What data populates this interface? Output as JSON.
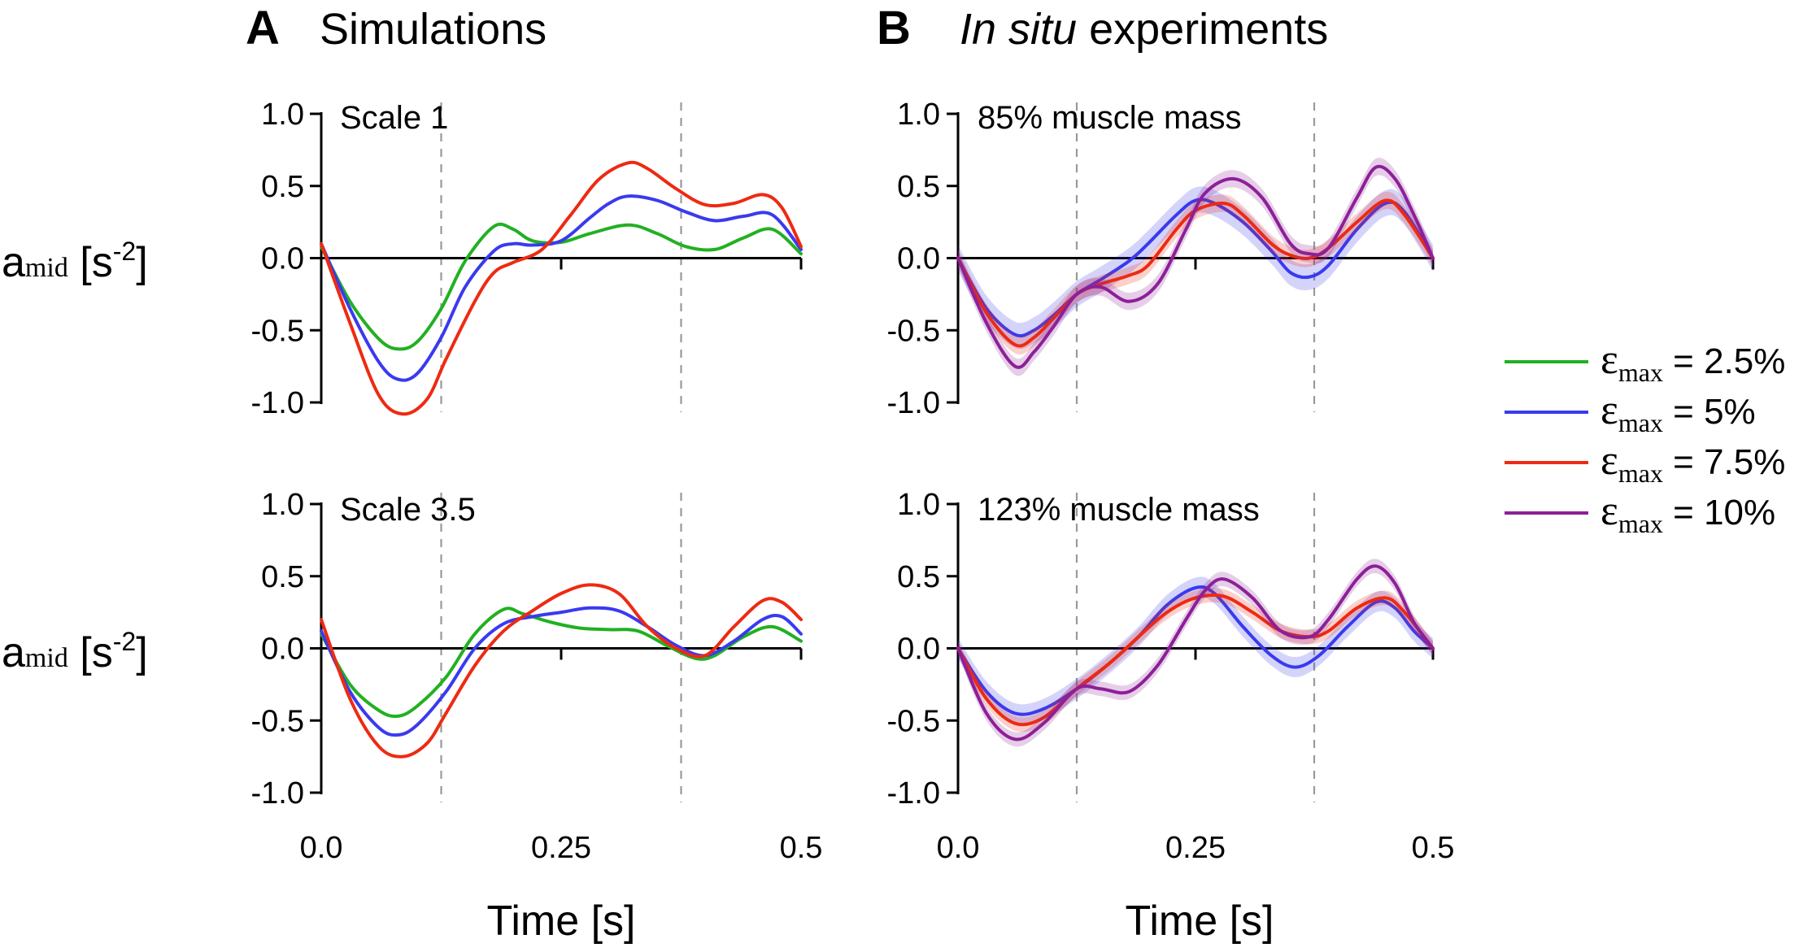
{
  "figure": {
    "panel_a": {
      "letter": "A",
      "title": "Simulations"
    },
    "panel_b": {
      "letter": "B",
      "title_italic": "In situ",
      "title_rest": " experiments"
    },
    "ylabel": {
      "main": "a",
      "sub": "mid",
      "unit_open": " [s",
      "sup": "-2",
      "unit_close": "]"
    },
    "xlabel": "Time [s]",
    "colors": {
      "green": "#22b022",
      "blue": "#3a3aef",
      "red": "#ee2a12",
      "purple": "#8c2098"
    },
    "legend": [
      {
        "symbol": "ε",
        "sub": "max",
        "text": " = 2.5%",
        "color": "#22b022"
      },
      {
        "symbol": "ε",
        "sub": "max",
        "text": " = 5%",
        "color": "#3a3aef"
      },
      {
        "symbol": "ε",
        "sub": "max",
        "text": " = 7.5%",
        "color": "#ee2a12"
      },
      {
        "symbol": "ε",
        "sub": "max",
        "text": " = 10%",
        "color": "#8c2098"
      }
    ]
  },
  "chart_data": [
    {
      "type": "line",
      "panel": "A",
      "subtitle": "Scale 1",
      "xlim": [
        0,
        0.5
      ],
      "ylim": [
        -1.0,
        1.0
      ],
      "xticks": [
        0.0,
        0.25,
        0.5
      ],
      "xtick_labels": [],
      "yticks": [
        -1.0,
        -0.5,
        0.0,
        0.5,
        1.0
      ],
      "ytick_labels": [
        "-1.0",
        "-0.5",
        "0.0",
        "0.5",
        "1.0"
      ],
      "vlines": [
        0.125,
        0.375
      ],
      "series": [
        {
          "name": "εmax = 2.5%",
          "color": "#22b022",
          "x": [
            0,
            0.03,
            0.06,
            0.08,
            0.1,
            0.125,
            0.15,
            0.18,
            0.2,
            0.22,
            0.25,
            0.28,
            0.32,
            0.35,
            0.38,
            0.41,
            0.44,
            0.47,
            0.5
          ],
          "y": [
            0.08,
            -0.3,
            -0.56,
            -0.63,
            -0.58,
            -0.35,
            -0.02,
            0.22,
            0.2,
            0.12,
            0.11,
            0.17,
            0.23,
            0.17,
            0.08,
            0.06,
            0.14,
            0.2,
            0.03
          ]
        },
        {
          "name": "εmax = 5%",
          "color": "#3a3aef",
          "x": [
            0,
            0.03,
            0.06,
            0.08,
            0.1,
            0.125,
            0.15,
            0.18,
            0.2,
            0.22,
            0.25,
            0.28,
            0.3,
            0.32,
            0.35,
            0.38,
            0.41,
            0.44,
            0.47,
            0.5
          ],
          "y": [
            0.1,
            -0.35,
            -0.72,
            -0.84,
            -0.8,
            -0.55,
            -0.2,
            0.05,
            0.1,
            0.09,
            0.12,
            0.28,
            0.38,
            0.43,
            0.4,
            0.32,
            0.26,
            0.29,
            0.3,
            0.06
          ]
        },
        {
          "name": "εmax = 7.5%",
          "color": "#ee2a12",
          "x": [
            0,
            0.03,
            0.06,
            0.085,
            0.11,
            0.13,
            0.16,
            0.18,
            0.2,
            0.23,
            0.26,
            0.29,
            0.32,
            0.34,
            0.37,
            0.4,
            0.43,
            0.46,
            0.48,
            0.5
          ],
          "y": [
            0.1,
            -0.45,
            -0.95,
            -1.08,
            -0.98,
            -0.7,
            -0.3,
            -0.1,
            -0.03,
            0.06,
            0.3,
            0.55,
            0.66,
            0.62,
            0.48,
            0.37,
            0.38,
            0.44,
            0.35,
            0.08
          ]
        }
      ]
    },
    {
      "type": "line",
      "panel": "B",
      "subtitle": "85% muscle mass",
      "xlim": [
        0,
        0.5
      ],
      "ylim": [
        -1.0,
        1.0
      ],
      "xticks": [
        0.0,
        0.25,
        0.5
      ],
      "xtick_labels": [],
      "yticks": [
        -1.0,
        -0.5,
        0.0,
        0.5,
        1.0
      ],
      "ytick_labels": [
        "-1.0",
        "-0.5",
        "0.0",
        "0.5",
        "1.0"
      ],
      "vlines": [
        0.125,
        0.375
      ],
      "series": [
        {
          "name": "εmax = 5%",
          "color": "#3a3aef",
          "x": [
            0,
            0.03,
            0.06,
            0.08,
            0.1,
            0.125,
            0.15,
            0.18,
            0.2,
            0.23,
            0.25,
            0.27,
            0.3,
            0.33,
            0.35,
            0.37,
            0.39,
            0.42,
            0.45,
            0.47,
            0.5
          ],
          "y": [
            0,
            -0.35,
            -0.53,
            -0.5,
            -0.4,
            -0.25,
            -0.15,
            -0.02,
            0.1,
            0.3,
            0.4,
            0.38,
            0.25,
            0.05,
            -0.1,
            -0.13,
            -0.05,
            0.2,
            0.38,
            0.32,
            0
          ],
          "band": 0.09
        },
        {
          "name": "εmax = 7.5%",
          "color": "#ee2a12",
          "x": [
            0,
            0.03,
            0.06,
            0.08,
            0.1,
            0.125,
            0.15,
            0.18,
            0.2,
            0.23,
            0.25,
            0.28,
            0.3,
            0.33,
            0.35,
            0.37,
            0.39,
            0.42,
            0.45,
            0.47,
            0.5
          ],
          "y": [
            0,
            -0.38,
            -0.6,
            -0.55,
            -0.42,
            -0.25,
            -0.18,
            -0.12,
            -0.05,
            0.2,
            0.33,
            0.38,
            0.3,
            0.1,
            0.02,
            0.0,
            0.07,
            0.25,
            0.4,
            0.3,
            0
          ],
          "band": 0.06
        },
        {
          "name": "εmax = 10%",
          "color": "#8c2098",
          "x": [
            0,
            0.03,
            0.06,
            0.08,
            0.1,
            0.125,
            0.15,
            0.18,
            0.21,
            0.24,
            0.26,
            0.29,
            0.32,
            0.35,
            0.37,
            0.39,
            0.42,
            0.44,
            0.46,
            0.48,
            0.5
          ],
          "y": [
            0,
            -0.45,
            -0.75,
            -0.65,
            -0.48,
            -0.25,
            -0.2,
            -0.3,
            -0.18,
            0.2,
            0.45,
            0.55,
            0.42,
            0.1,
            0.03,
            0.07,
            0.42,
            0.63,
            0.55,
            0.3,
            0
          ],
          "band": 0.06
        }
      ]
    },
    {
      "type": "line",
      "panel": "A",
      "subtitle": "Scale 3.5",
      "xlim": [
        0,
        0.5
      ],
      "ylim": [
        -1.0,
        1.0
      ],
      "xticks": [
        0.0,
        0.25,
        0.5
      ],
      "xtick_labels": [
        "0.0",
        "0.25",
        "0.5"
      ],
      "yticks": [
        -1.0,
        -0.5,
        0.0,
        0.5,
        1.0
      ],
      "ytick_labels": [
        "-1.0",
        "-0.5",
        "0.0",
        "0.5",
        "1.0"
      ],
      "vlines": [
        0.125,
        0.375
      ],
      "series": [
        {
          "name": "εmax = 2.5%",
          "color": "#22b022",
          "x": [
            0,
            0.03,
            0.06,
            0.08,
            0.1,
            0.13,
            0.16,
            0.19,
            0.21,
            0.24,
            0.27,
            0.3,
            0.33,
            0.36,
            0.39,
            0.41,
            0.44,
            0.47,
            0.5
          ],
          "y": [
            0.1,
            -0.25,
            -0.43,
            -0.47,
            -0.4,
            -0.2,
            0.1,
            0.27,
            0.24,
            0.18,
            0.14,
            0.13,
            0.12,
            0.02,
            -0.07,
            -0.05,
            0.08,
            0.15,
            0.05
          ]
        },
        {
          "name": "εmax = 5%",
          "color": "#3a3aef",
          "x": [
            0,
            0.03,
            0.06,
            0.08,
            0.1,
            0.13,
            0.16,
            0.19,
            0.22,
            0.25,
            0.28,
            0.31,
            0.34,
            0.37,
            0.4,
            0.43,
            0.46,
            0.48,
            0.5
          ],
          "y": [
            0.12,
            -0.3,
            -0.55,
            -0.6,
            -0.53,
            -0.3,
            0.0,
            0.17,
            0.22,
            0.25,
            0.28,
            0.26,
            0.15,
            0.02,
            -0.05,
            0.05,
            0.2,
            0.22,
            0.1
          ]
        },
        {
          "name": "εmax = 7.5%",
          "color": "#ee2a12",
          "x": [
            0,
            0.03,
            0.06,
            0.085,
            0.11,
            0.13,
            0.16,
            0.19,
            0.22,
            0.25,
            0.28,
            0.31,
            0.34,
            0.37,
            0.4,
            0.43,
            0.46,
            0.48,
            0.5
          ],
          "y": [
            0.2,
            -0.35,
            -0.68,
            -0.75,
            -0.66,
            -0.45,
            -0.12,
            0.12,
            0.26,
            0.38,
            0.44,
            0.38,
            0.15,
            0.0,
            -0.05,
            0.15,
            0.33,
            0.32,
            0.2
          ]
        }
      ]
    },
    {
      "type": "line",
      "panel": "B",
      "subtitle": "123% muscle mass",
      "xlim": [
        0,
        0.5
      ],
      "ylim": [
        -1.0,
        1.0
      ],
      "xticks": [
        0.0,
        0.25,
        0.5
      ],
      "xtick_labels": [
        "0.0",
        "0.25",
        "0.5"
      ],
      "yticks": [
        -1.0,
        -0.5,
        0.0,
        0.5,
        1.0
      ],
      "ytick_labels": [
        "-1.0",
        "-0.5",
        "0.0",
        "0.5",
        "1.0"
      ],
      "vlines": [
        0.125,
        0.375
      ],
      "series": [
        {
          "name": "εmax = 5%",
          "color": "#3a3aef",
          "x": [
            0,
            0.03,
            0.06,
            0.09,
            0.125,
            0.16,
            0.19,
            0.22,
            0.25,
            0.27,
            0.3,
            0.33,
            0.355,
            0.38,
            0.41,
            0.44,
            0.46,
            0.48,
            0.5
          ],
          "y": [
            0,
            -0.3,
            -0.45,
            -0.42,
            -0.28,
            -0.1,
            0.08,
            0.3,
            0.42,
            0.38,
            0.15,
            -0.05,
            -0.13,
            -0.05,
            0.15,
            0.32,
            0.28,
            0.12,
            0
          ],
          "band": 0.07
        },
        {
          "name": "εmax = 7.5%",
          "color": "#ee2a12",
          "x": [
            0,
            0.03,
            0.06,
            0.09,
            0.125,
            0.16,
            0.19,
            0.22,
            0.25,
            0.28,
            0.31,
            0.34,
            0.37,
            0.39,
            0.42,
            0.45,
            0.47,
            0.5
          ],
          "y": [
            0,
            -0.35,
            -0.52,
            -0.48,
            -0.28,
            -0.1,
            0.08,
            0.25,
            0.35,
            0.36,
            0.25,
            0.12,
            0.08,
            0.12,
            0.28,
            0.35,
            0.25,
            0
          ],
          "band": 0.05
        },
        {
          "name": "εmax = 10%",
          "color": "#8c2098",
          "x": [
            0,
            0.03,
            0.06,
            0.09,
            0.125,
            0.15,
            0.18,
            0.21,
            0.24,
            0.26,
            0.28,
            0.31,
            0.34,
            0.37,
            0.39,
            0.42,
            0.44,
            0.46,
            0.48,
            0.5
          ],
          "y": [
            0,
            -0.45,
            -0.63,
            -0.52,
            -0.28,
            -0.28,
            -0.3,
            -0.12,
            0.2,
            0.4,
            0.48,
            0.35,
            0.12,
            0.08,
            0.2,
            0.48,
            0.57,
            0.45,
            0.18,
            0
          ],
          "band": 0.05
        }
      ]
    }
  ]
}
